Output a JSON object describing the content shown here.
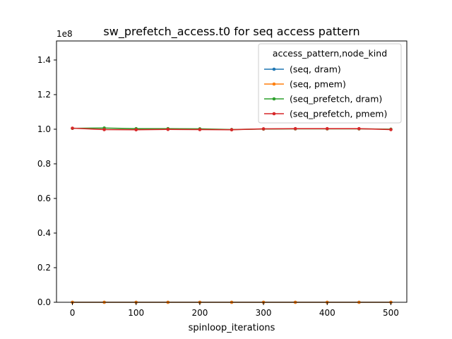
{
  "chart_data": {
    "type": "line",
    "title": "sw_prefetch_access.t0 for seq access pattern",
    "xlabel": "spinloop_iterations",
    "ylabel": "",
    "y_offset_label": "1e8",
    "x": [
      0,
      50,
      100,
      150,
      200,
      250,
      300,
      350,
      400,
      450,
      500
    ],
    "xlim": [
      -25,
      525
    ],
    "ylim": [
      0,
      1.51
    ],
    "x_ticks": [
      0,
      100,
      200,
      300,
      400,
      500
    ],
    "y_ticks": [
      0.0,
      0.2,
      0.4,
      0.6,
      0.8,
      1.0,
      1.2,
      1.4
    ],
    "y_tick_labels": [
      "0.0",
      "0.2",
      "0.4",
      "0.6",
      "0.8",
      "1.0",
      "1.2",
      "1.4"
    ],
    "grid": false,
    "legend": {
      "title": "access_pattern,node_kind",
      "placement": "top-right"
    },
    "series": [
      {
        "name": "(seq, dram)",
        "color": "#1f77b4",
        "values": [
          0,
          0,
          0,
          0,
          0,
          0,
          0,
          0,
          0,
          0,
          0
        ]
      },
      {
        "name": "(seq, pmem)",
        "color": "#ff7f0e",
        "values": [
          0,
          0,
          0,
          0,
          0,
          0,
          0,
          0,
          0,
          0,
          0
        ]
      },
      {
        "name": "(seq_prefetch, dram)",
        "color": "#2ca02c",
        "values": [
          1.005,
          1.007,
          1.003,
          1.003,
          1.002,
          0.998,
          1.001,
          1.002,
          1.002,
          1.002,
          1.0
        ]
      },
      {
        "name": "(seq_prefetch, pmem)",
        "color": "#d62728",
        "values": [
          1.006,
          0.998,
          0.997,
          0.999,
          0.998,
          0.997,
          1.002,
          1.003,
          1.003,
          1.003,
          0.998
        ]
      }
    ]
  }
}
